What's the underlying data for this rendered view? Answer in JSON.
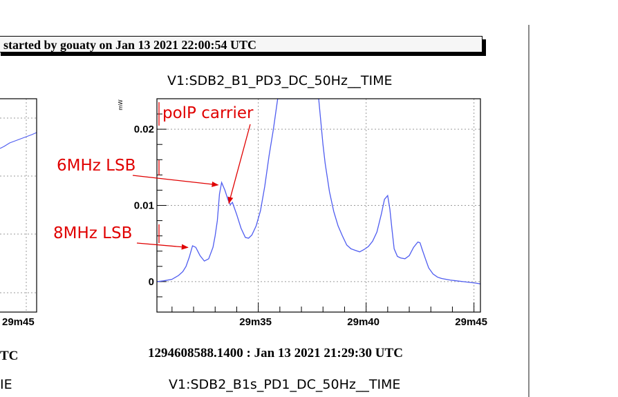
{
  "banner": {
    "text": "started by gouaty on Jan 13 2021 22:00:54 UTC"
  },
  "left_fragments": {
    "tick_label": "29m45",
    "time_suffix": "TC",
    "title_suffix": "IE"
  },
  "bottom": {
    "timestamp": "1294608588.1400 : Jan 13 2021 21:29:30 UTC",
    "next_title": "V1:SDB2_B1s_PD1_DC_50Hz__TIME"
  },
  "colors": {
    "trace": "#4e5cf0",
    "annotation": "#e00000"
  },
  "chart_data": {
    "type": "line",
    "title": "V1:SDB2_B1_PD3_DC_50Hz__TIME",
    "ylabel": "mW",
    "xlabel": "",
    "xlim": [
      30.3,
      45.3
    ],
    "ylim": [
      -0.004,
      0.024
    ],
    "grid": true,
    "x_ticks": [
      {
        "value": 35,
        "label": "29m35"
      },
      {
        "value": 40,
        "label": "29m40"
      },
      {
        "value": 45,
        "label": "29m45"
      }
    ],
    "y_ticks": [
      {
        "value": 0,
        "label": "0"
      },
      {
        "value": 0.01,
        "label": "0.01"
      },
      {
        "value": 0.02,
        "label": "0.02"
      }
    ],
    "series": [
      {
        "x": [
          30.3,
          30.6,
          31.0,
          31.3,
          31.5,
          31.65,
          31.8,
          31.95,
          32.1,
          32.3,
          32.5,
          32.7,
          32.9,
          33.0,
          33.1,
          33.2,
          33.3,
          33.45,
          33.6,
          33.7,
          33.8,
          34.0,
          34.2,
          34.4,
          34.55,
          34.7,
          34.9,
          35.1,
          35.3,
          35.5,
          35.7,
          35.9,
          36.1,
          36.3,
          36.5,
          36.7,
          36.9,
          37.1,
          37.3,
          37.5,
          37.65,
          37.8,
          37.9,
          38.0,
          38.1,
          38.3,
          38.5,
          38.7,
          38.9,
          39.1,
          39.3,
          39.5,
          39.7,
          39.9,
          40.1,
          40.3,
          40.5,
          40.7,
          40.85,
          41.0,
          41.1,
          41.2,
          41.3,
          41.45,
          41.6,
          41.8,
          42.0,
          42.2,
          42.4,
          42.5,
          42.6,
          42.75,
          42.9,
          43.1,
          43.3,
          43.5,
          43.7,
          43.9,
          44.2,
          44.5,
          44.8,
          45.1,
          45.3
        ],
        "values": [
          0.0,
          0.0001,
          0.0003,
          0.0008,
          0.0013,
          0.002,
          0.0032,
          0.0047,
          0.0045,
          0.0034,
          0.0027,
          0.003,
          0.0045,
          0.006,
          0.008,
          0.0115,
          0.013,
          0.012,
          0.0107,
          0.0101,
          0.0104,
          0.0088,
          0.007,
          0.0058,
          0.0057,
          0.0061,
          0.0073,
          0.0093,
          0.0125,
          0.0165,
          0.02,
          0.024,
          0.024,
          0.024,
          0.024,
          0.024,
          0.024,
          0.024,
          0.024,
          0.024,
          0.024,
          0.024,
          0.021,
          0.018,
          0.0155,
          0.0118,
          0.0092,
          0.0073,
          0.006,
          0.0048,
          0.0043,
          0.0041,
          0.0039,
          0.0042,
          0.0046,
          0.0053,
          0.0065,
          0.0088,
          0.0108,
          0.0113,
          0.0095,
          0.0068,
          0.0043,
          0.0033,
          0.0031,
          0.003,
          0.0034,
          0.0045,
          0.0052,
          0.0051,
          0.0042,
          0.003,
          0.0018,
          0.001,
          0.0006,
          0.0004,
          0.0003,
          0.0002,
          0.0001,
          0.0,
          -0.0001,
          -0.0002,
          -0.0003
        ]
      }
    ],
    "annotations": [
      {
        "text": "polP carrier",
        "x": 33.7,
        "y": 0.0101
      },
      {
        "text": "6MHz LSB",
        "x": 33.2,
        "y": 0.0125
      },
      {
        "text": "8MHz LSB",
        "x": 31.8,
        "y": 0.0043
      }
    ]
  }
}
